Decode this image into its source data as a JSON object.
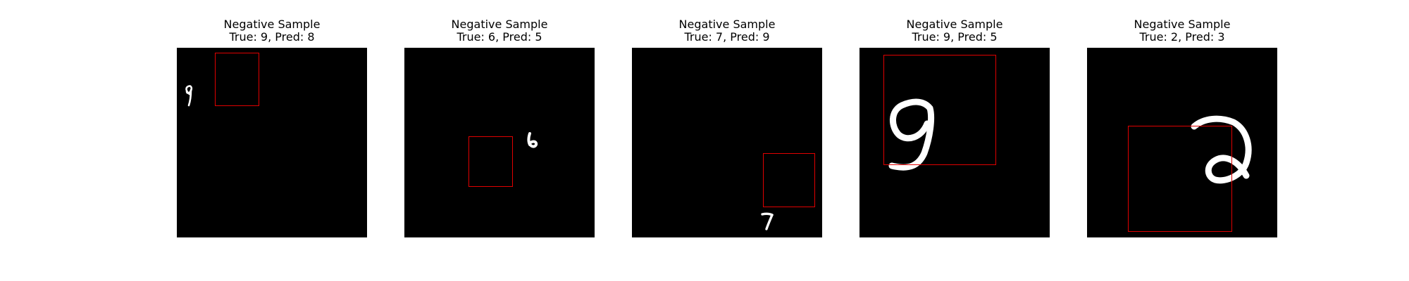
{
  "figure": {
    "panels": [
      {
        "title_line1": "Negative Sample",
        "title_line2": "True: 9, Pred: 8",
        "true_label": 9,
        "pred_label": 8,
        "digit_icon": "digit-9-icon"
      },
      {
        "title_line1": "Negative Sample",
        "title_line2": "True: 6, Pred: 5",
        "true_label": 6,
        "pred_label": 5,
        "digit_icon": "digit-6-icon"
      },
      {
        "title_line1": "Negative Sample",
        "title_line2": "True: 7, Pred: 9",
        "true_label": 7,
        "pred_label": 9,
        "digit_icon": "digit-7-icon"
      },
      {
        "title_line1": "Negative Sample",
        "title_line2": "True: 9, Pred: 5",
        "true_label": 9,
        "pred_label": 5,
        "digit_icon": "digit-9-icon"
      },
      {
        "title_line1": "Negative Sample",
        "title_line2": "True: 2, Pred: 3",
        "true_label": 2,
        "pred_label": 3,
        "digit_icon": "digit-2-icon"
      }
    ],
    "colors": {
      "background": "#ffffff",
      "image_background": "#000000",
      "digit_stroke": "#ffffff",
      "bbox": "#e00000"
    }
  }
}
